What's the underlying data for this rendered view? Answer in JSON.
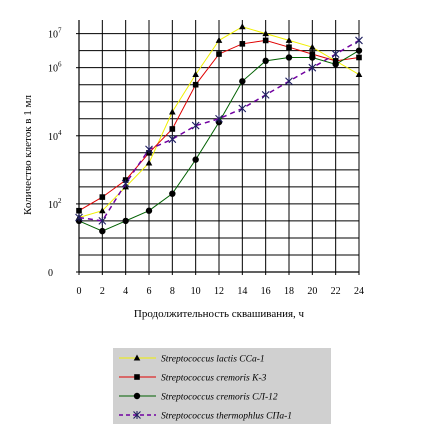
{
  "chart_data": {
    "type": "line",
    "xlabel": "Продолжительность сквашивания, ч",
    "ylabel": "Количество клеток в 1 мл",
    "x": [
      0,
      2,
      4,
      6,
      8,
      10,
      12,
      14,
      16,
      18,
      20,
      22,
      24
    ],
    "x_ticks": [
      "0",
      "2",
      "4",
      "6",
      "8",
      "10",
      "12",
      "14",
      "16",
      "18",
      "20",
      "22",
      "24"
    ],
    "xlim": [
      0,
      24
    ],
    "y_scale": "log",
    "ylim_exp": [
      0,
      7.4
    ],
    "y_ticks": [
      {
        "base": "0",
        "exp": "",
        "log": 0
      },
      {
        "base": "10",
        "exp": "2",
        "log": 2
      },
      {
        "base": "10",
        "exp": "4",
        "log": 4
      },
      {
        "base": "10",
        "exp": "6",
        "log": 6
      },
      {
        "base": "10",
        "exp": "7",
        "log": 7
      }
    ],
    "grid": true,
    "series": [
      {
        "name": "Streptococcus lactis CCa-1",
        "color": "#f0f000",
        "marker": "triangle",
        "dash": "solid",
        "values": [
          1.6,
          1.8,
          2.5,
          3.2,
          4.7,
          5.8,
          6.8,
          7.2,
          7.0,
          6.8,
          6.6,
          6.2,
          5.8
        ]
      },
      {
        "name": "Streptococcus cremoris K-3",
        "color": "#e00000",
        "marker": "square",
        "dash": "solid",
        "values": [
          1.8,
          2.2,
          2.7,
          3.5,
          4.2,
          5.5,
          6.4,
          6.7,
          6.8,
          6.6,
          6.4,
          6.2,
          6.3
        ]
      },
      {
        "name": "Streptococcus cremoris СЛ-12",
        "color": "#006000",
        "marker": "circle",
        "dash": "solid",
        "values": [
          1.5,
          1.2,
          1.5,
          1.8,
          2.3,
          3.3,
          4.4,
          5.6,
          6.2,
          6.3,
          6.3,
          6.1,
          6.5
        ]
      },
      {
        "name": "Streptococcus thermophlus CПа-1",
        "color": "#7000a0",
        "marker": "x",
        "dash": "dash",
        "values": [
          1.6,
          1.5,
          2.6,
          3.6,
          3.9,
          4.3,
          4.5,
          4.8,
          5.2,
          5.6,
          6.0,
          6.4,
          6.8
        ]
      }
    ]
  }
}
